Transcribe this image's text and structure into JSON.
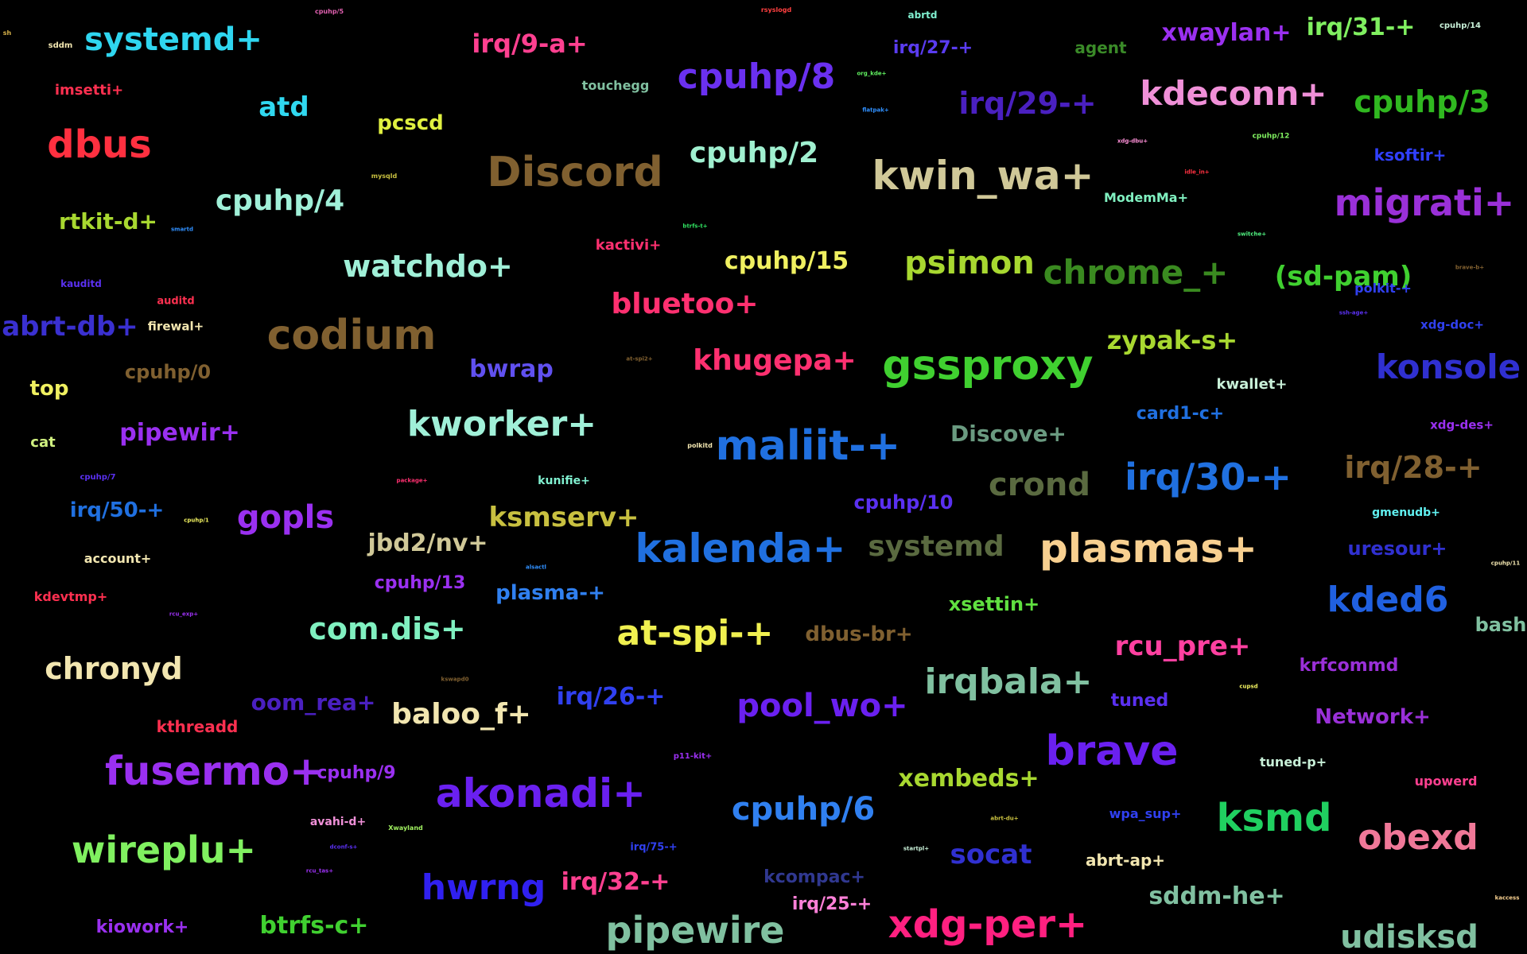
{
  "words": [
    {
      "t": "sh",
      "s": 8,
      "c": "#d8b24a"
    },
    {
      "t": "systemd+",
      "s": 40,
      "c": "#2fd6f0"
    },
    {
      "t": "sddm",
      "s": 10,
      "c": "#f2e6b0"
    },
    {
      "t": "cpuhp/5",
      "s": 8,
      "c": "#e060b0"
    },
    {
      "t": "rsyslogd",
      "s": 8,
      "c": "#ff4040"
    },
    {
      "t": "abrtd",
      "s": 12,
      "c": "#80f0d0"
    },
    {
      "t": "cpuhp/14",
      "s": 10,
      "c": "#c8f0d8"
    },
    {
      "t": "irq/9-a+",
      "s": 32,
      "c": "#ff4090"
    },
    {
      "t": "irq/27-+",
      "s": 22,
      "c": "#5a3cf0"
    },
    {
      "t": "agent",
      "s": 20,
      "c": "#3a8a28"
    },
    {
      "t": "xwaylan+",
      "s": 30,
      "c": "#9b30f0"
    },
    {
      "t": "irq/31-+",
      "s": 30,
      "c": "#80f060"
    },
    {
      "t": "imsetti+",
      "s": 18,
      "c": "#ff3050"
    },
    {
      "t": "touchegg",
      "s": 16,
      "c": "#80c0a0"
    },
    {
      "t": "cpuhp/8",
      "s": 44,
      "c": "#6a30f0"
    },
    {
      "t": "org_kde+",
      "s": 7,
      "c": "#60f060"
    },
    {
      "t": "irq/29-+",
      "s": 38,
      "c": "#4a20c0"
    },
    {
      "t": "kdeconn+",
      "s": 42,
      "c": "#f090d8"
    },
    {
      "t": "cpuhp/3",
      "s": 38,
      "c": "#30b820"
    },
    {
      "t": "atd",
      "s": 34,
      "c": "#30d8f0"
    },
    {
      "t": "pcscd",
      "s": 26,
      "c": "#e0f040"
    },
    {
      "t": "flatpak+",
      "s": 7,
      "c": "#3090ff"
    },
    {
      "t": "dbus",
      "s": 48,
      "c": "#ff3040"
    },
    {
      "t": "Discord",
      "s": 52,
      "c": "#806030"
    },
    {
      "t": "cpuhp/2",
      "s": 36,
      "c": "#a0f0d0"
    },
    {
      "t": "xdg-dbu+",
      "s": 7,
      "c": "#ff90d8"
    },
    {
      "t": "cpuhp/12",
      "s": 9,
      "c": "#80f060"
    },
    {
      "t": "ksoftir+",
      "s": 20,
      "c": "#3040ff"
    },
    {
      "t": "kwin_wa+",
      "s": 50,
      "c": "#d0c898"
    },
    {
      "t": "mysqld",
      "s": 8,
      "c": "#c8c040"
    },
    {
      "t": "idle_in+",
      "s": 7,
      "c": "#ff3040"
    },
    {
      "t": "ModemMa+",
      "s": 16,
      "c": "#80f0c0"
    },
    {
      "t": "migrati+",
      "s": 46,
      "c": "#9a30d8"
    },
    {
      "t": "cpuhp/4",
      "s": 36,
      "c": "#a0f0d8"
    },
    {
      "t": "rtkit-d+",
      "s": 28,
      "c": "#a8d830"
    },
    {
      "t": "smartd",
      "s": 7,
      "c": "#3090ff"
    },
    {
      "t": "btrfs-t+",
      "s": 7,
      "c": "#30e060"
    },
    {
      "t": "switche+",
      "s": 7,
      "c": "#50f080"
    },
    {
      "t": "kactivi+",
      "s": 18,
      "c": "#ff3070"
    },
    {
      "t": "cpuhp/15",
      "s": 30,
      "c": "#f0f060"
    },
    {
      "t": "psimon",
      "s": 40,
      "c": "#a8d830"
    },
    {
      "t": "chrome_+",
      "s": 42,
      "c": "#3a8a20"
    },
    {
      "t": "(sd-pam)",
      "s": 34,
      "c": "#40d030"
    },
    {
      "t": "brave-b+",
      "s": 7,
      "c": "#806030"
    },
    {
      "t": "watchdo+",
      "s": 38,
      "c": "#a0f0d8"
    },
    {
      "t": "kauditd",
      "s": 12,
      "c": "#5a30f0"
    },
    {
      "t": "auditd",
      "s": 13,
      "c": "#ff3050"
    },
    {
      "t": "bluetoo+",
      "s": 36,
      "c": "#ff3070"
    },
    {
      "t": "polkit-+",
      "s": 16,
      "c": "#3040f0"
    },
    {
      "t": "ssh-age+",
      "s": 7,
      "c": "#5a30f0"
    },
    {
      "t": "abrt-db+",
      "s": 34,
      "c": "#3a30d0"
    },
    {
      "t": "firewal+",
      "s": 15,
      "c": "#f2e6b0"
    },
    {
      "t": "codium",
      "s": 52,
      "c": "#806030"
    },
    {
      "t": "zypak-s+",
      "s": 32,
      "c": "#a8d830"
    },
    {
      "t": "xdg-doc+",
      "s": 15,
      "c": "#3040f0"
    },
    {
      "t": "cpuhp/0",
      "s": 24,
      "c": "#806030"
    },
    {
      "t": "bwrap",
      "s": 30,
      "c": "#6050f0"
    },
    {
      "t": "at-spi2+",
      "s": 7,
      "c": "#806030"
    },
    {
      "t": "khugepa+",
      "s": 36,
      "c": "#ff3070"
    },
    {
      "t": "gssproxy",
      "s": 52,
      "c": "#40d030"
    },
    {
      "t": "konsole",
      "s": 42,
      "c": "#3030d0"
    },
    {
      "t": "top",
      "s": 26,
      "c": "#f0f060"
    },
    {
      "t": "kwallet+",
      "s": 18,
      "c": "#c8f0d8"
    },
    {
      "t": "kworker+",
      "s": 44,
      "c": "#a0f0d8"
    },
    {
      "t": "card1-c+",
      "s": 22,
      "c": "#2070e0"
    },
    {
      "t": "cat",
      "s": 18,
      "c": "#d0f080"
    },
    {
      "t": "pipewir+",
      "s": 30,
      "c": "#9a30f0"
    },
    {
      "t": "polkitd",
      "s": 8,
      "c": "#f2e6b0"
    },
    {
      "t": "maliit-+",
      "s": 52,
      "c": "#2070e0"
    },
    {
      "t": "Discove+",
      "s": 28,
      "c": "#6a9a80"
    },
    {
      "t": "xdg-des+",
      "s": 15,
      "c": "#9a30f0"
    },
    {
      "t": "irq/30-+",
      "s": 46,
      "c": "#2070e0"
    },
    {
      "t": "irq/28-+",
      "s": 38,
      "c": "#806030"
    },
    {
      "t": "cpuhp/7",
      "s": 10,
      "c": "#5a30f0"
    },
    {
      "t": "package+",
      "s": 7,
      "c": "#ff3070"
    },
    {
      "t": "kunifie+",
      "s": 14,
      "c": "#80f0d0"
    },
    {
      "t": "crond",
      "s": 40,
      "c": "#5a6a40"
    },
    {
      "t": "irq/50-+",
      "s": 26,
      "c": "#2070e0"
    },
    {
      "t": "gopls",
      "s": 40,
      "c": "#9a30f0"
    },
    {
      "t": "cpuhp/1",
      "s": 7,
      "c": "#f0f060"
    },
    {
      "t": "ksmserv+",
      "s": 34,
      "c": "#c8c040"
    },
    {
      "t": "cpuhp/10",
      "s": 24,
      "c": "#5a30f0"
    },
    {
      "t": "gmenudb+",
      "s": 14,
      "c": "#60f0f0"
    },
    {
      "t": "kalenda+",
      "s": 50,
      "c": "#2070e0"
    },
    {
      "t": "systemd",
      "s": 36,
      "c": "#5a6a40"
    },
    {
      "t": "plasmas+",
      "s": 50,
      "c": "#f8d090"
    },
    {
      "t": "jbd2/nv+",
      "s": 30,
      "c": "#d0c898"
    },
    {
      "t": "uresour+",
      "s": 24,
      "c": "#3030d0"
    },
    {
      "t": "account+",
      "s": 16,
      "c": "#f2e6b0"
    },
    {
      "t": "alsactl",
      "s": 7,
      "c": "#3090ff"
    },
    {
      "t": "cpuhp/11",
      "s": 7,
      "c": "#f2e6b0"
    },
    {
      "t": "cpuhp/13",
      "s": 22,
      "c": "#9a30f0"
    },
    {
      "t": "plasma-+",
      "s": 26,
      "c": "#3080f0"
    },
    {
      "t": "kded6",
      "s": 44,
      "c": "#2060e0"
    },
    {
      "t": "kdevtmp+",
      "s": 16,
      "c": "#ff3050"
    },
    {
      "t": "xsettin+",
      "s": 24,
      "c": "#60e040"
    },
    {
      "t": "rcu_exp+",
      "s": 7,
      "c": "#9a30f0"
    },
    {
      "t": "com.dis+",
      "s": 38,
      "c": "#80f0c0"
    },
    {
      "t": "at-spi-+",
      "s": 44,
      "c": "#f0f050"
    },
    {
      "t": "dbus-br+",
      "s": 26,
      "c": "#806030"
    },
    {
      "t": "rcu_pre+",
      "s": 34,
      "c": "#ff40a0"
    },
    {
      "t": "bash",
      "s": 24,
      "c": "#80c0a0"
    },
    {
      "t": "chronyd",
      "s": 38,
      "c": "#f2e6b0"
    },
    {
      "t": "krfcommd",
      "s": 22,
      "c": "#9a30d8"
    },
    {
      "t": "kswapd0",
      "s": 7,
      "c": "#806030"
    },
    {
      "t": "irqbala+",
      "s": 44,
      "c": "#80c0a0"
    },
    {
      "t": "cupsd",
      "s": 7,
      "c": "#f0f060"
    },
    {
      "t": "oom_rea+",
      "s": 28,
      "c": "#4a20c0"
    },
    {
      "t": "baloo_f+",
      "s": 36,
      "c": "#f2e6b0"
    },
    {
      "t": "irq/26-+",
      "s": 30,
      "c": "#3040f0"
    },
    {
      "t": "pool_wo+",
      "s": 40,
      "c": "#6a20f0"
    },
    {
      "t": "tuned",
      "s": 22,
      "c": "#5a30f0"
    },
    {
      "t": "Network+",
      "s": 26,
      "c": "#9a30d8"
    },
    {
      "t": "kthreadd",
      "s": 20,
      "c": "#ff3050"
    },
    {
      "t": "fusermo+",
      "s": 50,
      "c": "#9a30f0"
    },
    {
      "t": "p11-kit+",
      "s": 10,
      "c": "#9a30f0"
    },
    {
      "t": "brave",
      "s": 52,
      "c": "#6a20f0"
    },
    {
      "t": "tuned-p+",
      "s": 16,
      "c": "#c8f0d8"
    },
    {
      "t": "cpuhp/9",
      "s": 22,
      "c": "#9a30f0"
    },
    {
      "t": "akonadi+",
      "s": 50,
      "c": "#6a20f0"
    },
    {
      "t": "xembeds+",
      "s": 30,
      "c": "#a8d830"
    },
    {
      "t": "upowerd",
      "s": 16,
      "c": "#ff4090"
    },
    {
      "t": "cpuhp/6",
      "s": 40,
      "c": "#3080f0"
    },
    {
      "t": "wpa_sup+",
      "s": 16,
      "c": "#3040f0"
    },
    {
      "t": "ksmd",
      "s": 48,
      "c": "#20d060"
    },
    {
      "t": "avahi-d+",
      "s": 14,
      "c": "#f090d8"
    },
    {
      "t": "abrt-du+",
      "s": 7,
      "c": "#c8c040"
    },
    {
      "t": "obexd",
      "s": 44,
      "c": "#f07898"
    },
    {
      "t": "Xwayland",
      "s": 8,
      "c": "#a0f060"
    },
    {
      "t": "wireplu+",
      "s": 46,
      "c": "#80f060"
    },
    {
      "t": "dconf-s+",
      "s": 7,
      "c": "#5a30f0"
    },
    {
      "t": "irq/75-+",
      "s": 13,
      "c": "#3040f0"
    },
    {
      "t": "startpl+",
      "s": 7,
      "c": "#c8f0d8"
    },
    {
      "t": "socat",
      "s": 34,
      "c": "#3030d0"
    },
    {
      "t": "abrt-ap+",
      "s": 20,
      "c": "#f2e6b0"
    },
    {
      "t": "rcu_tas+",
      "s": 7,
      "c": "#9a30f0"
    },
    {
      "t": "kcompac+",
      "s": 22,
      "c": "#303890"
    },
    {
      "t": "hwrng",
      "s": 44,
      "c": "#3020f0"
    },
    {
      "t": "irq/32-+",
      "s": 30,
      "c": "#ff4090"
    },
    {
      "t": "sddm-he+",
      "s": 30,
      "c": "#80c0a0"
    },
    {
      "t": "kaccess",
      "s": 7,
      "c": "#f8d090"
    },
    {
      "t": "irq/25-+",
      "s": 22,
      "c": "#ff80d8"
    },
    {
      "t": "kiowork+",
      "s": 22,
      "c": "#9a30f0"
    },
    {
      "t": "btrfs-c+",
      "s": 30,
      "c": "#40d030"
    },
    {
      "t": "pipewire",
      "s": 46,
      "c": "#80c0a0"
    },
    {
      "t": "xdg-per+",
      "s": 48,
      "c": "#ff2080"
    },
    {
      "t": "udisksd",
      "s": 40,
      "c": "#80c0a0"
    }
  ]
}
